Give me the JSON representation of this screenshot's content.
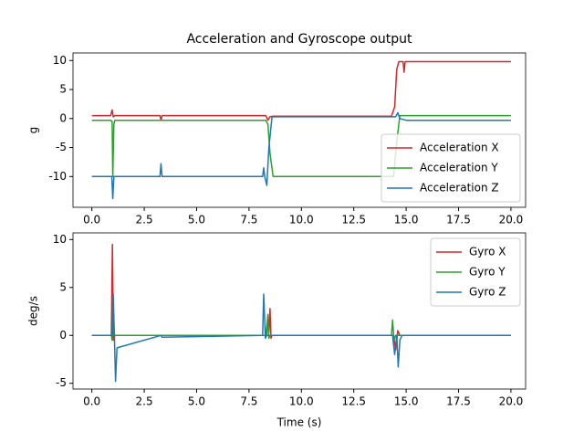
{
  "chart_data": [
    {
      "type": "line",
      "title": "Acceleration and Gyroscope output",
      "ylabel": "g",
      "xlim": [
        -0.9,
        20.7
      ],
      "ylim": [
        -15.3,
        11.3
      ],
      "xticks": [
        {
          "value": 0,
          "label": "0.0"
        },
        {
          "value": 2.5,
          "label": "2.5"
        },
        {
          "value": 5,
          "label": "5.0"
        },
        {
          "value": 7.5,
          "label": "7.5"
        },
        {
          "value": 10,
          "label": "10.0"
        },
        {
          "value": 12.5,
          "label": "12.5"
        },
        {
          "value": 15,
          "label": "15.0"
        },
        {
          "value": 17.5,
          "label": "17.5"
        },
        {
          "value": 20,
          "label": "20.0"
        }
      ],
      "yticks": [
        -10,
        -5,
        0,
        5,
        10
      ],
      "legend": "lower right",
      "series": [
        {
          "name": "Acceleration X",
          "color": "#d62728",
          "x": [
            0,
            0.9,
            0.97,
            1.02,
            1.1,
            3.25,
            3.3,
            3.35,
            8.3,
            8.4,
            8.5,
            8.6,
            14.3,
            14.45,
            14.55,
            14.65,
            14.85,
            14.9,
            14.95,
            20
          ],
          "values": [
            0.5,
            0.5,
            1.5,
            0.3,
            0.5,
            0.5,
            -0.3,
            0.5,
            0.5,
            -0.3,
            0.3,
            0.4,
            0.4,
            2,
            8.5,
            9.8,
            9.8,
            8,
            9.8,
            9.8
          ]
        },
        {
          "name": "Acceleration Y",
          "color": "#2ca02c",
          "x": [
            0,
            0.9,
            0.97,
            1.0,
            1.05,
            1.1,
            8.3,
            8.4,
            8.5,
            8.65,
            14.4,
            14.55,
            14.7,
            20
          ],
          "values": [
            -0.3,
            -0.3,
            -0.5,
            -10,
            -1,
            -0.3,
            -0.3,
            -1,
            -6,
            -10,
            -10,
            -4,
            0.5,
            0.5
          ]
        },
        {
          "name": "Acceleration Z",
          "color": "#1f77b4",
          "x": [
            0,
            0.95,
            1.0,
            1.05,
            1.1,
            3.25,
            3.3,
            3.35,
            8.15,
            8.2,
            8.25,
            8.35,
            8.45,
            8.6,
            14.5,
            14.6,
            14.7,
            15,
            20
          ],
          "values": [
            -10,
            -10,
            -13.8,
            -10,
            -10,
            -10,
            -7.8,
            -10,
            -10,
            -8.5,
            -10,
            -11.5,
            -5,
            0.3,
            0.3,
            1,
            0,
            -0.3,
            -0.3
          ]
        }
      ]
    },
    {
      "type": "line",
      "ylabel": "deg/s",
      "xlabel": "Time (s)",
      "xlim": [
        -0.9,
        20.7
      ],
      "ylim": [
        -5.6,
        10.7
      ],
      "xticks": [
        {
          "value": 0,
          "label": "0.0"
        },
        {
          "value": 2.5,
          "label": "2.5"
        },
        {
          "value": 5,
          "label": "5.0"
        },
        {
          "value": 7.5,
          "label": "7.5"
        },
        {
          "value": 10,
          "label": "10.0"
        },
        {
          "value": 12.5,
          "label": "12.5"
        },
        {
          "value": 15,
          "label": "15.0"
        },
        {
          "value": 17.5,
          "label": "17.5"
        },
        {
          "value": 20,
          "label": "20.0"
        }
      ],
      "yticks": [
        -5,
        0,
        5,
        10
      ],
      "legend": "upper right",
      "series": [
        {
          "name": "Gyro X",
          "color": "#d62728",
          "x": [
            0,
            0.93,
            0.98,
            1.03,
            1.1,
            8.3,
            8.4,
            8.45,
            8.5,
            8.55,
            8.6,
            14.4,
            14.5,
            14.6,
            14.7,
            20
          ],
          "values": [
            0,
            0,
            9.5,
            -0.5,
            0,
            0,
            2,
            0.3,
            2.8,
            -0.3,
            0,
            0,
            -1.5,
            0.5,
            0,
            0
          ]
        },
        {
          "name": "Gyro Y",
          "color": "#2ca02c",
          "x": [
            0,
            0.93,
            0.97,
            1.0,
            1.05,
            8.35,
            8.4,
            8.45,
            8.5,
            14.3,
            14.35,
            14.42,
            14.5,
            20
          ],
          "values": [
            0,
            0,
            -0.5,
            4,
            0,
            0,
            2.2,
            -0.3,
            0,
            0,
            1.6,
            -0.5,
            0,
            0
          ]
        },
        {
          "name": "Gyro Z",
          "color": "#1f77b4",
          "x": [
            0,
            0.97,
            1.02,
            1.08,
            1.13,
            1.2,
            3.3,
            3.35,
            8.15,
            8.2,
            8.28,
            8.35,
            14.35,
            14.45,
            14.55,
            14.62,
            14.7,
            14.8,
            20
          ],
          "values": [
            0,
            0,
            4.3,
            -0.5,
            -4.8,
            -1.3,
            0,
            -0.2,
            0,
            4.3,
            -0.3,
            0,
            0,
            -2,
            0,
            -3.3,
            -0.5,
            0,
            0
          ]
        }
      ]
    }
  ]
}
